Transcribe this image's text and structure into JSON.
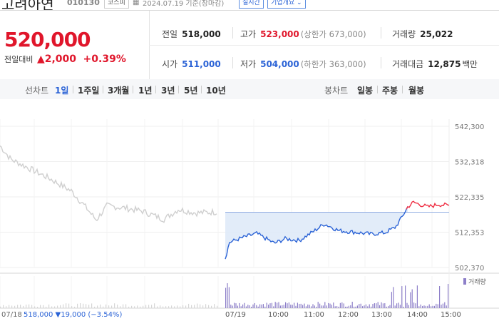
{
  "header": {
    "name": "고려아연",
    "code": "010130",
    "market": "코스피",
    "date": "2024.07.19 기준(장마감)",
    "realtime": "실시간",
    "company_info": "기업개요 ⌄"
  },
  "summary": {
    "price": "520,000",
    "change_label": "전일대비",
    "change_amount": "▲2,000",
    "change_pct": "+0.39%",
    "prev_label": "전일",
    "prev_value": "518,000",
    "high_label": "고가",
    "high_value": "523,000",
    "upper_limit": "(상한가 673,000)",
    "volume_label": "거래량",
    "volume_value": "25,022",
    "open_label": "시가",
    "open_value": "511,000",
    "low_label": "저가",
    "low_value": "504,000",
    "lower_limit": "(하한가 363,000)",
    "amount_label": "거래대금",
    "amount_value": "12,875",
    "amount_unit": "백만"
  },
  "toolbar": {
    "line_chart_label": "선차트",
    "periods": [
      "1일",
      "1주일",
      "3개월",
      "1년",
      "3년",
      "5년",
      "10년"
    ],
    "candle_label": "봉차트",
    "candles": [
      "일봉",
      "주봉",
      "월봉"
    ]
  },
  "chart_data": {
    "type": "line",
    "y_ticks": [
      "542,300",
      "532,318",
      "522,335",
      "512,353",
      "502,370"
    ],
    "ylim": [
      502370,
      542300
    ],
    "x_ticks": [
      "07/19",
      "10:00",
      "11:00",
      "12:00",
      "13:00",
      "14:00",
      "15:00"
    ],
    "volume_label": "거래량",
    "prev_day_label": "07/18",
    "prev_day_summary": "518,000 ▼19,000 (−3.54%)",
    "baseline": 518000,
    "colors": {
      "prev_day": "#cfcfcf",
      "below": "#2b63d6",
      "above": "#ef2f44",
      "fill": "#dde9f8"
    }
  }
}
